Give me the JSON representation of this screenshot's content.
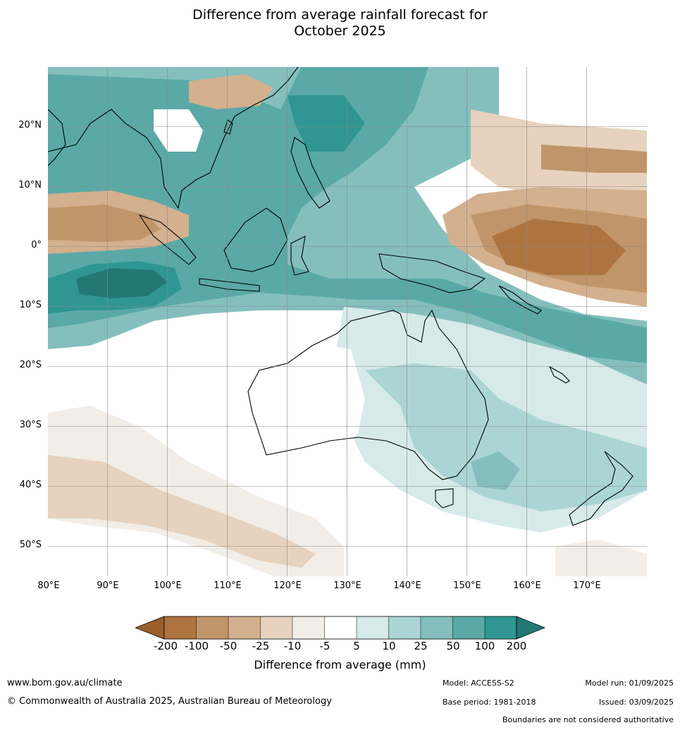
{
  "title_line1": "Difference from average rainfall forecast for",
  "title_line2": "October 2025",
  "lat_labels": [
    "20°N",
    "10°N",
    "0°",
    "10°S",
    "20°S",
    "30°S",
    "40°S",
    "50°S"
  ],
  "lon_labels": [
    "80°E",
    "90°E",
    "100°E",
    "110°E",
    "120°E",
    "130°E",
    "140°E",
    "150°E",
    "160°E",
    "170°E"
  ],
  "colorbar": {
    "label": "Difference from average (mm)",
    "ticks": [
      "-200",
      "-100",
      "-50",
      "-25",
      "-10",
      "-5",
      "5",
      "10",
      "25",
      "50",
      "100",
      "200"
    ],
    "colors": [
      "#9a5f2b",
      "#ae7440",
      "#c0956a",
      "#d3b08e",
      "#e6d2be",
      "#f2ede6",
      "#ffffff",
      "#d6eae9",
      "#abd5d4",
      "#84bfbe",
      "#5aa9a7",
      "#2f9691",
      "#237874"
    ]
  },
  "footer": {
    "website": "www.bom.gov.au/climate",
    "copyright": "© Commonwealth of Australia 2025, Australian Bureau of Meteorology",
    "model": "Model: ACCESS-S2",
    "base_period": "Base period: 1981-2018",
    "model_run": "Model run: 01/09/2025",
    "issued": "Issued: 03/09/2025",
    "boundaries": "Boundaries are not considered authoritative"
  }
}
